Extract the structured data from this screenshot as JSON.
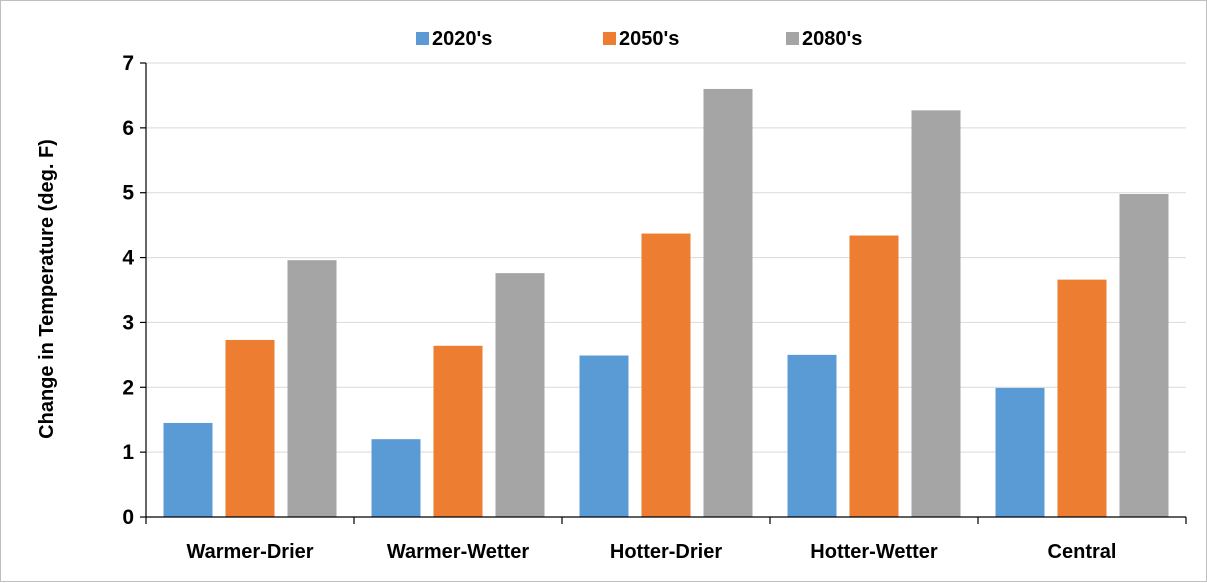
{
  "chart_data": {
    "type": "bar",
    "categories": [
      "Warmer-Drier",
      "Warmer-Wetter",
      "Hotter-Drier",
      "Hotter-Wetter",
      "Central"
    ],
    "series": [
      {
        "name": "2020's",
        "color": "#5b9bd5",
        "values": [
          1.45,
          1.2,
          2.49,
          2.5,
          1.99
        ]
      },
      {
        "name": "2050's",
        "color": "#ed7d31",
        "values": [
          2.73,
          2.64,
          4.37,
          4.34,
          3.66
        ]
      },
      {
        "name": "2080's",
        "color": "#a5a5a5",
        "values": [
          3.96,
          3.76,
          6.6,
          6.27,
          4.98
        ]
      }
    ],
    "title": "",
    "xlabel": "",
    "ylabel": "Change in Temperature (deg. F)",
    "ylim": [
      0,
      7
    ],
    "yticks": [
      0,
      1,
      2,
      3,
      4,
      5,
      6,
      7
    ],
    "grid": true,
    "legend_position": "top"
  }
}
